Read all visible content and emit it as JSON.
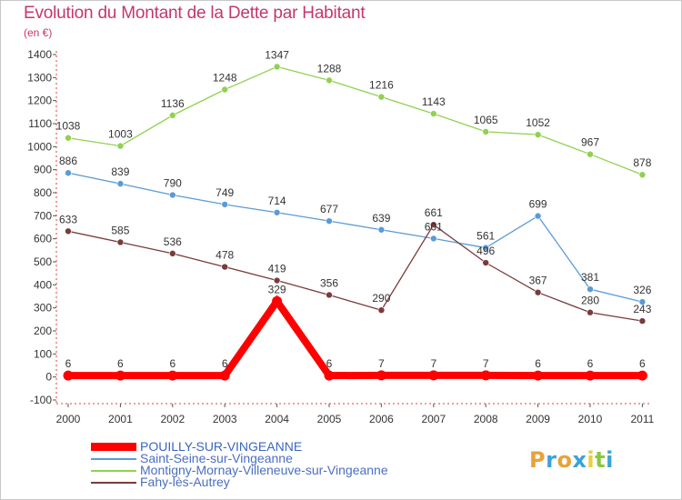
{
  "header": {
    "title": "Evolution du Montant de la Dette par Habitant",
    "unit": "(en €)"
  },
  "brand": {
    "letters": [
      "P",
      "r",
      "o",
      "x",
      "i",
      "t",
      "i"
    ],
    "colors": [
      "#e8a23a",
      "#3aa3d9",
      "#e8a23a",
      "#3aa3d9",
      "#e8cf3a",
      "#8cc63f",
      "#3aa3d9"
    ]
  },
  "chart_data": {
    "type": "line",
    "x": [
      "2000",
      "2001",
      "2002",
      "2003",
      "2004",
      "2005",
      "2006",
      "2007",
      "2008",
      "2009",
      "2010",
      "2011"
    ],
    "ylim": [
      -100,
      1400
    ],
    "yticks": [
      -100,
      0,
      100,
      200,
      300,
      400,
      500,
      600,
      700,
      800,
      900,
      1000,
      1100,
      1200,
      1300,
      1400
    ],
    "grid": false,
    "legend_position": "bottom",
    "series": [
      {
        "name": "POUILLY-SUR-VINGEANNE",
        "color": "#ff0000",
        "values": [
          6,
          6,
          6,
          6,
          329,
          6,
          7,
          7,
          7,
          6,
          6,
          6
        ],
        "labels": [
          "6",
          "6",
          "6",
          "6",
          "329",
          "6",
          "7",
          "7",
          "7",
          "6",
          "6",
          "6"
        ]
      },
      {
        "name": "Saint-Seine-sur-Vingeanne",
        "color": "#5b9bd5",
        "values": [
          886,
          839,
          790,
          749,
          714,
          677,
          639,
          601,
          561,
          699,
          381,
          326
        ],
        "labels": [
          "886",
          "839",
          "790",
          "749",
          "714",
          "677",
          "639",
          "601",
          "561",
          "699",
          "381",
          "326"
        ]
      },
      {
        "name": "Montigny-Mornay-Villeneuve-sur-Vingeanne",
        "color": "#92d050",
        "values": [
          1038,
          1003,
          1136,
          1248,
          1347,
          1288,
          1216,
          1143,
          1065,
          1052,
          967,
          878
        ],
        "labels": [
          "1038",
          "1003",
          "1136",
          "1248",
          "1347",
          "1288",
          "1216",
          "1143",
          "1065",
          "1052",
          "967",
          "878"
        ]
      },
      {
        "name": "Fahy-lès-Autrey",
        "color": "#7a3b3b",
        "values": [
          633,
          585,
          536,
          478,
          419,
          356,
          290,
          661,
          496,
          367,
          280,
          243
        ],
        "labels": [
          "633",
          "585",
          "536",
          "478",
          "419",
          "356",
          "290",
          "661",
          "496",
          "367",
          "280",
          "243"
        ]
      }
    ]
  }
}
